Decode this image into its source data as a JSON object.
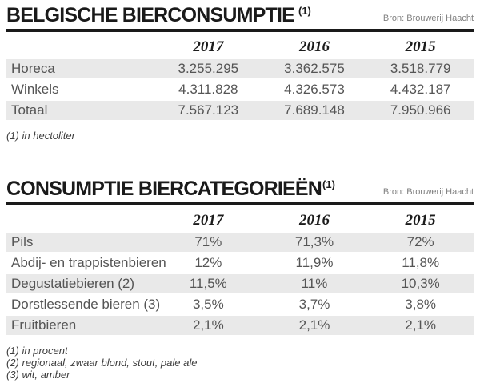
{
  "colors": {
    "shaded_row": "#e9e9e9",
    "rule": "#1a1a1a",
    "body_text": "#555555",
    "source_text": "#808080"
  },
  "sections": [
    {
      "title": "BELGISCHE BIERCONSUMPTIE",
      "title_sup": "(1)",
      "source": "Bron: Brouwerij Haacht",
      "columns": [
        "2017",
        "2016",
        "2015"
      ],
      "rows": [
        {
          "label": "Horeca",
          "values": [
            "3.255.295",
            "3.362.575",
            "3.518.779"
          ]
        },
        {
          "label": "Winkels",
          "values": [
            "4.311.828",
            "4.326.573",
            "4.432.187"
          ]
        },
        {
          "label": "Totaal",
          "values": [
            "7.567.123",
            "7.689.148",
            "7.950.966"
          ]
        }
      ],
      "footnotes": [
        "(1) in hectoliter"
      ]
    },
    {
      "title": "CONSUMPTIE BIERCATEGORIEËN",
      "title_sup": "(1)",
      "source": "Bron: Brouwerij Haacht",
      "columns": [
        "2017",
        "2016",
        "2015"
      ],
      "rows": [
        {
          "label": "Pils",
          "values": [
            "71%",
            "71,3%",
            "72%"
          ]
        },
        {
          "label": "Abdij- en trappistenbieren",
          "values": [
            "12%",
            "11,9%",
            "11,8%"
          ]
        },
        {
          "label": "Degustatiebieren (2)",
          "values": [
            "11,5%",
            "11%",
            "10,3%"
          ]
        },
        {
          "label": "Dorstlessende bieren (3)",
          "values": [
            "3,5%",
            "3,7%",
            "3,8%"
          ]
        },
        {
          "label": "Fruitbieren",
          "values": [
            "2,1%",
            "2,1%",
            "2,1%"
          ]
        }
      ],
      "footnotes": [
        "(1) in procent",
        "(2) regionaal, zwaar blond, stout, pale ale",
        "(3) wit, amber"
      ]
    }
  ],
  "chart_data": [
    {
      "type": "table",
      "title": "BELGISCHE BIERCONSUMPTIE (1)",
      "source": "Bron: Brouwerij Haacht",
      "unit": "hectoliter",
      "columns": [
        "2017",
        "2016",
        "2015"
      ],
      "rows": [
        {
          "category": "Horeca",
          "values": [
            3255295,
            3362575,
            3518779
          ]
        },
        {
          "category": "Winkels",
          "values": [
            4311828,
            4326573,
            4432187
          ]
        },
        {
          "category": "Totaal",
          "values": [
            7567123,
            7689148,
            7950966
          ]
        }
      ],
      "footnotes": [
        "(1) in hectoliter"
      ]
    },
    {
      "type": "table",
      "title": "CONSUMPTIE BIERCATEGORIEËN(1)",
      "source": "Bron: Brouwerij Haacht",
      "unit": "percent",
      "columns": [
        "2017",
        "2016",
        "2015"
      ],
      "rows": [
        {
          "category": "Pils",
          "values": [
            71,
            71.3,
            72
          ]
        },
        {
          "category": "Abdij- en trappistenbieren",
          "values": [
            12,
            11.9,
            11.8
          ]
        },
        {
          "category": "Degustatiebieren (2)",
          "values": [
            11.5,
            11,
            10.3
          ]
        },
        {
          "category": "Dorstlessende bieren (3)",
          "values": [
            3.5,
            3.7,
            3.8
          ]
        },
        {
          "category": "Fruitbieren",
          "values": [
            2.1,
            2.1,
            2.1
          ]
        }
      ],
      "footnotes": [
        "(1) in procent",
        "(2) regionaal, zwaar blond, stout, pale ale",
        "(3) wit, amber"
      ]
    }
  ]
}
